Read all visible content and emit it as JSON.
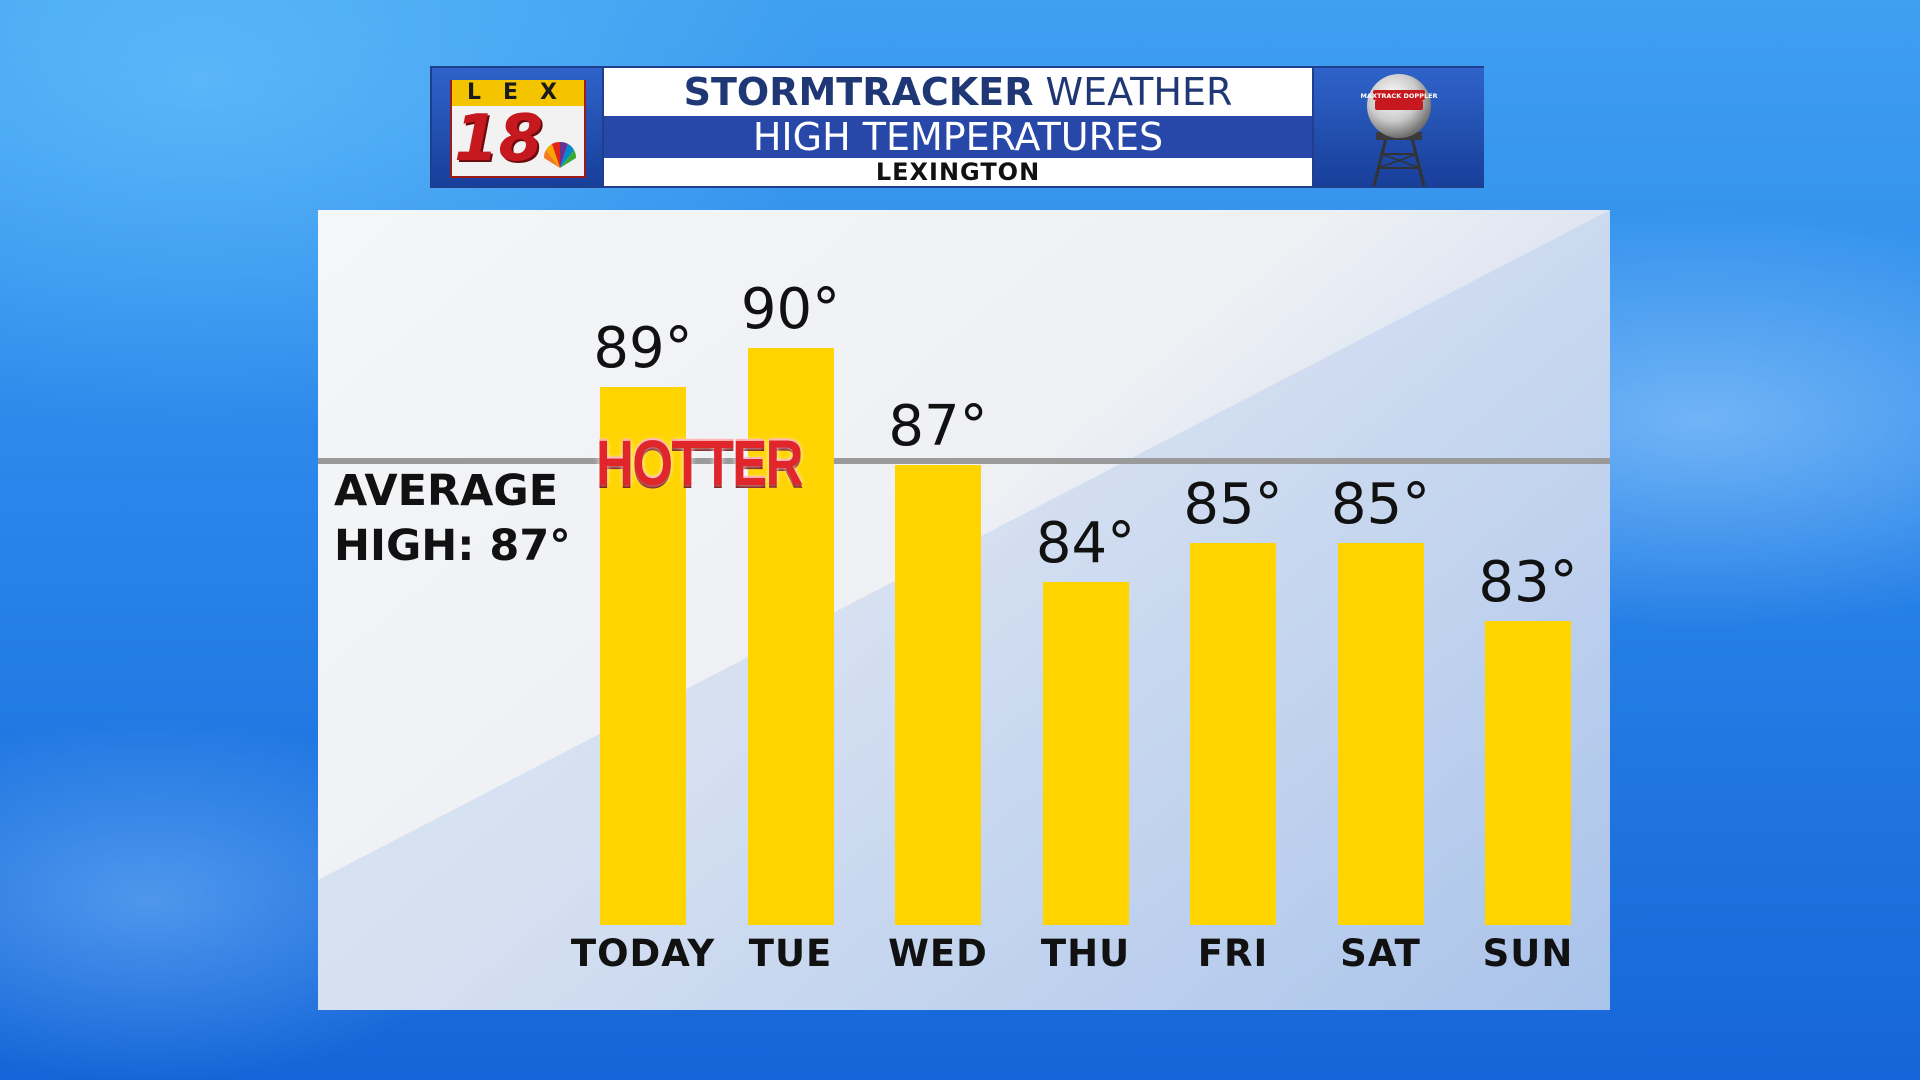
{
  "banner": {
    "logo": {
      "letters": "LEX",
      "number": "18"
    },
    "title_line1_bold": "STORMTRACKER",
    "title_line1_rest": " WEATHER",
    "title_line2": "HIGH TEMPERATURES",
    "title_line3": "LEXINGTON",
    "radar_icon_text": "MAXTRACK DOPPLER"
  },
  "average": {
    "line1": "AVERAGE",
    "line2": "HIGH: 87°",
    "value": 87
  },
  "annotation": "HOTTER",
  "colors": {
    "bar": "#ffd400",
    "banner_blue": "#2748a8",
    "title_text": "#1f3775",
    "hotter": "#e0262a"
  },
  "chart_data": {
    "type": "bar",
    "title": "HIGH TEMPERATURES",
    "categories": [
      "TODAY",
      "TUE",
      "WED",
      "THU",
      "FRI",
      "SAT",
      "SUN"
    ],
    "values": [
      89,
      90,
      87,
      84,
      85,
      85,
      83
    ],
    "value_labels": [
      "89°",
      "90°",
      "87°",
      "84°",
      "85°",
      "85°",
      "83°"
    ],
    "reference_line": {
      "label": "AVERAGE HIGH: 87°",
      "value": 87
    },
    "xlabel": "",
    "ylabel": "",
    "grid": false
  }
}
